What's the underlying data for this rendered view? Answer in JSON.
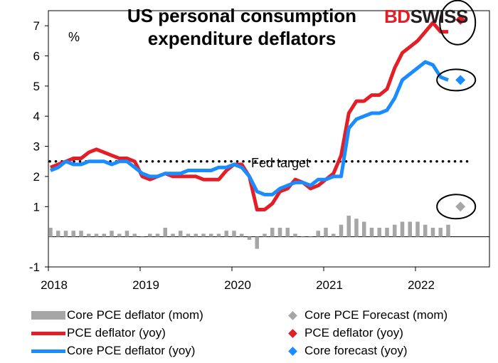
{
  "title_line1": "US personal consumption",
  "title_line2": "expenditure deflators",
  "logo": {
    "part1": "BD",
    "part2": "SWISS"
  },
  "y_unit": "%",
  "annotation": "Fed target",
  "colors": {
    "pce": "#e41e26",
    "core": "#1a8cff",
    "bars": "#a6a6a6",
    "forecast_bar": "#a6a6a6"
  },
  "legend": {
    "core_mom": "Core PCE deflator (mom)",
    "core_fc_mom": "Core PCE Forecast (mom)",
    "pce_yoy": "PCE deflator (yoy)",
    "pce_fc": "PCE deflator (yoy)",
    "core_yoy": "Core PCE deflator (yoy)",
    "core_fc": "Core forecast (yoy)"
  },
  "chart_data": {
    "type": "line",
    "start": "2018-01",
    "x_ticks": [
      "2018",
      "2019",
      "2020",
      "2021",
      "2022"
    ],
    "ylim": [
      -1,
      7.5
    ],
    "y_ticks": [
      "-1",
      "1",
      "2",
      "3",
      "4",
      "5",
      "6",
      "7"
    ],
    "fed_target": 2.5,
    "series": [
      {
        "name": "PCE deflator (yoy)",
        "values": [
          2.3,
          2.4,
          2.5,
          2.6,
          2.6,
          2.8,
          2.9,
          2.8,
          2.7,
          2.6,
          2.6,
          2.5,
          2.0,
          1.9,
          2.0,
          2.1,
          2.0,
          2.0,
          2.0,
          2.0,
          1.9,
          1.9,
          1.9,
          2.2,
          2.4,
          2.4,
          2.0,
          0.9,
          0.9,
          1.1,
          1.5,
          1.6,
          1.9,
          1.8,
          1.6,
          1.7,
          1.9,
          2.1,
          2.7,
          4.1,
          4.5,
          4.5,
          4.7,
          4.7,
          4.9,
          5.6,
          6.1,
          6.3,
          6.5,
          6.8,
          7.1,
          6.8,
          6.8
        ]
      },
      {
        "name": "Core PCE deflator (yoy)",
        "values": [
          2.2,
          2.3,
          2.5,
          2.4,
          2.4,
          2.5,
          2.5,
          2.5,
          2.4,
          2.5,
          2.5,
          2.3,
          2.1,
          2.0,
          2.0,
          2.1,
          2.1,
          2.1,
          2.2,
          2.2,
          2.2,
          2.2,
          2.3,
          2.3,
          2.4,
          2.3,
          2.0,
          1.5,
          1.4,
          1.4,
          1.6,
          1.7,
          1.8,
          1.8,
          1.7,
          1.9,
          1.9,
          2.0,
          2.0,
          3.6,
          3.9,
          4.0,
          4.1,
          4.1,
          4.2,
          4.6,
          5.2,
          5.4,
          5.6,
          5.8,
          5.7,
          5.3,
          5.2
        ]
      },
      {
        "name": "Core PCE deflator (mom)",
        "values": [
          0.3,
          0.2,
          0.2,
          0.2,
          0.2,
          0.1,
          0.1,
          0.1,
          0.2,
          0.1,
          0.2,
          0.1,
          0.0,
          0.1,
          0.1,
          0.3,
          0.1,
          0.2,
          0.1,
          0.1,
          0.1,
          0.1,
          0.1,
          0.2,
          0.2,
          0.1,
          -0.1,
          -0.4,
          0.1,
          0.3,
          0.3,
          0.3,
          0.1,
          0.0,
          0.0,
          0.2,
          0.3,
          0.1,
          0.4,
          0.7,
          0.6,
          0.5,
          0.3,
          0.3,
          0.3,
          0.4,
          0.5,
          0.5,
          0.5,
          0.4,
          0.3,
          0.3,
          0.4
        ]
      }
    ],
    "forecasts": {
      "pce_yoy": 7.2,
      "core_yoy": 5.2,
      "core_mom": 1.0
    }
  }
}
